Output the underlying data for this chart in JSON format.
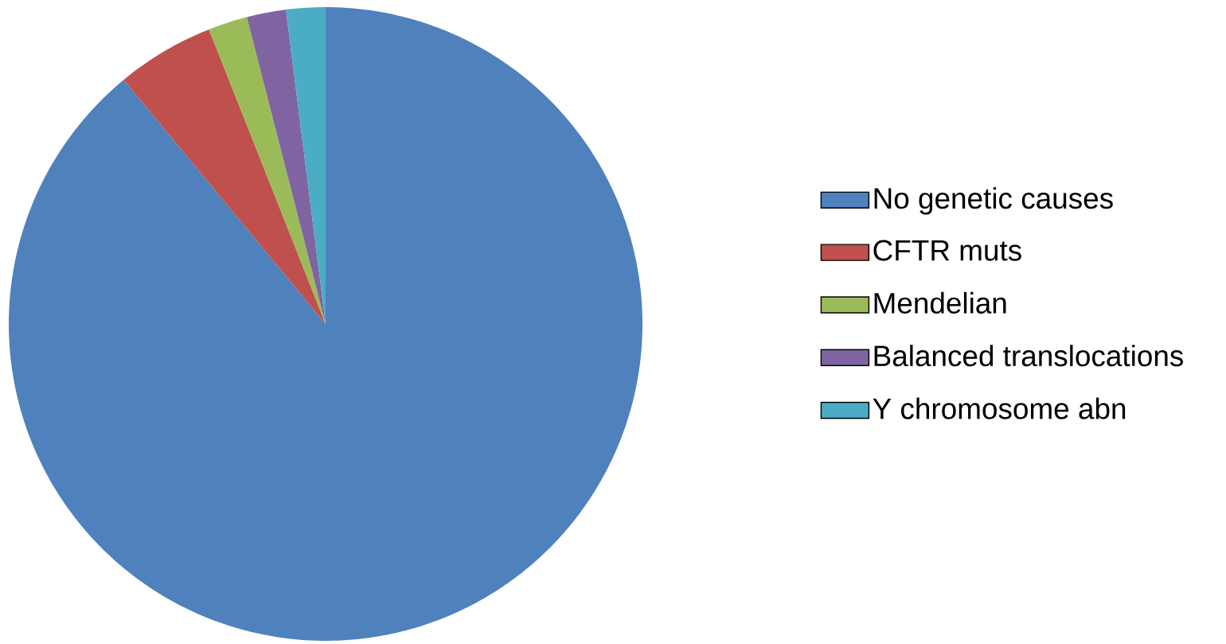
{
  "chart_data": {
    "type": "pie",
    "categories": [
      "No genetic causes",
      "CFTR muts",
      "Mendelian",
      "Balanced translocations",
      "Y chromosome abn"
    ],
    "values": [
      89,
      5,
      2,
      2,
      2
    ],
    "colors": [
      "#4f81bd",
      "#c0504d",
      "#9bbb59",
      "#8064a2",
      "#4bacc6"
    ],
    "legend": "right"
  }
}
